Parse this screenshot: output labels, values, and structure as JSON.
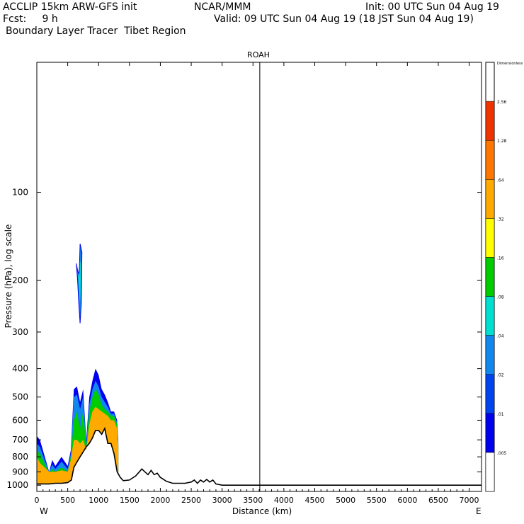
{
  "header": {
    "line1_left": "ACCLIP 15km ARW-GFS init",
    "line1_mid": "NCAR/MMM",
    "line1_right": "Init: 00 UTC Sun 04 Aug 19",
    "line2_left": "Fcst:     9 h",
    "line2_right": "Valid: 09 UTC Sun 04 Aug 19 (18 JST Sun 04 Aug 19)",
    "line3_left": "Boundary Layer Tracer  Tibet Region"
  },
  "chart_data": {
    "type": "area",
    "title": "ROAH",
    "xlabel": "Distance (km)",
    "ylabel": "Pressure (hPa), log scale",
    "x_ticks": [
      0,
      500,
      1000,
      1500,
      2000,
      2500,
      3000,
      3500,
      4000,
      4500,
      5000,
      5500,
      6000,
      6500,
      7000
    ],
    "x_tick_labels": [
      "0",
      "500",
      "1000",
      "1500",
      "2000",
      "2500",
      "3000",
      "3500",
      "4000",
      "4500",
      "5000",
      "5500",
      "6000",
      "6500",
      "7000"
    ],
    "y_ticks": [
      100,
      200,
      300,
      400,
      500,
      600,
      700,
      800,
      900,
      1000
    ],
    "y_tick_labels": [
      "100",
      "200",
      "300",
      "400",
      "500",
      "600",
      "700",
      "800",
      "900",
      "1000"
    ],
    "xlim": [
      0,
      7200
    ],
    "ylim": [
      1050,
      36
    ],
    "y_scale": "log",
    "left_end_label": "W",
    "right_end_label": "E",
    "vertical_marker_km": 3610,
    "colorbar": {
      "unit_label": "Dimensionless",
      "labels": [
        ".005",
        ".01",
        ".02",
        ".04",
        ".08",
        ".16",
        ".32",
        ".64",
        "1.28",
        "2.56"
      ],
      "colors": [
        "#ffffff",
        "#0000ee",
        "#0044ee",
        "#1188ee",
        "#00e0d0",
        "#00cc00",
        "#ffff00",
        "#ffaa00",
        "#ff7700",
        "#ee3300"
      ]
    },
    "terrain": {
      "x": [
        0,
        200,
        300,
        400,
        500,
        560,
        600,
        640,
        700,
        750,
        800,
        850,
        900,
        950,
        1000,
        1050,
        1100,
        1150,
        1200,
        1250,
        1300,
        1350,
        1400,
        1500,
        1600,
        1700,
        1750,
        1800,
        1850,
        1900,
        1950,
        2000,
        2100,
        2200,
        2400,
        2500,
        2550,
        2600,
        2650,
        2700,
        2750,
        2800,
        2850,
        2900,
        3000,
        3500,
        4000,
        4500,
        5000,
        5500,
        6000,
        6500,
        7000,
        7200
      ],
      "p": [
        990,
        990,
        985,
        985,
        980,
        960,
        870,
        840,
        800,
        770,
        740,
        720,
        690,
        650,
        650,
        670,
        640,
        720,
        720,
        780,
        900,
        940,
        965,
        960,
        930,
        880,
        900,
        920,
        890,
        920,
        910,
        940,
        970,
        985,
        985,
        975,
        960,
        985,
        960,
        975,
        955,
        975,
        960,
        990,
        1000,
        1000,
        1000,
        1000,
        1000,
        1000,
        1000,
        1000,
        1000,
        1000
      ]
    },
    "tracer_layers": [
      {
        "level": ".01",
        "color": "#0000ee",
        "x": [
          0,
          50,
          200,
          250,
          300,
          400,
          500,
          550,
          600,
          650,
          700,
          750,
          800,
          850,
          900,
          950,
          1000,
          1050,
          1100,
          1150,
          1200,
          1250,
          1300,
          1320
        ],
        "p": [
          680,
          700,
          900,
          820,
          860,
          800,
          860,
          760,
          470,
          460,
          520,
          470,
          700,
          500,
          440,
          400,
          420,
          470,
          490,
          520,
          560,
          560,
          600,
          700
        ]
      },
      {
        "level": ".04",
        "color": "#1188ee",
        "x": [
          0,
          50,
          200,
          250,
          300,
          400,
          500,
          550,
          600,
          650,
          700,
          750,
          800,
          850,
          900,
          950,
          1000,
          1050,
          1100,
          1150,
          1200,
          1250,
          1300,
          1320
        ],
        "p": [
          720,
          740,
          900,
          850,
          880,
          830,
          880,
          780,
          500,
          490,
          550,
          500,
          720,
          530,
          470,
          440,
          460,
          500,
          520,
          540,
          570,
          570,
          610,
          720
        ]
      },
      {
        "level": ".16",
        "color": "#00cc00",
        "x": [
          0,
          50,
          200,
          250,
          300,
          400,
          500,
          550,
          600,
          650,
          700,
          750,
          800,
          850,
          900,
          950,
          1000,
          1050,
          1100,
          1150,
          1200,
          1250,
          1300,
          1320
        ],
        "p": [
          760,
          780,
          910,
          880,
          900,
          870,
          900,
          800,
          600,
          560,
          640,
          560,
          740,
          560,
          500,
          470,
          490,
          530,
          550,
          560,
          580,
          580,
          620,
          730
        ]
      },
      {
        "level": ".64",
        "color": "#ffaa00",
        "x": [
          0,
          50,
          200,
          250,
          300,
          400,
          500,
          550,
          600,
          650,
          700,
          750,
          800,
          850,
          900,
          950,
          1000,
          1050,
          1100,
          1150,
          1200,
          1250,
          1300,
          1320
        ],
        "p": [
          800,
          840,
          900,
          900,
          900,
          890,
          900,
          820,
          700,
          700,
          720,
          700,
          760,
          620,
          560,
          540,
          550,
          560,
          570,
          580,
          600,
          600,
          640,
          740
        ]
      }
    ],
    "upper_plume": {
      "color": "#1188ee",
      "inner_color": "#00e0d0",
      "x": [
        640,
        660,
        680,
        700,
        720,
        730,
        700,
        690,
        680,
        660,
        650
      ],
      "p": [
        175,
        200,
        240,
        280,
        240,
        160,
        150,
        180,
        190,
        185,
        180
      ]
    }
  }
}
